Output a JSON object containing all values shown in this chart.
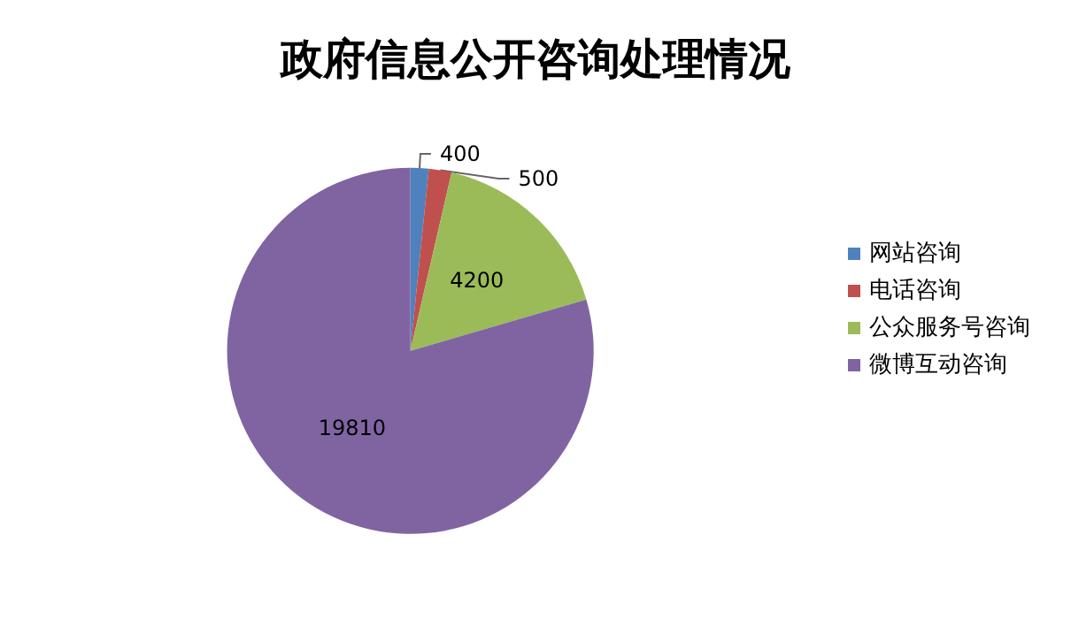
{
  "chart_data": {
    "type": "pie",
    "title": "政府信息公开咨询处理情况",
    "categories": [
      "网站咨询",
      "电话咨询",
      "公众服务号咨询",
      "微博互动咨询"
    ],
    "values": [
      400,
      500,
      4200,
      19810
    ],
    "colors": [
      "#4f81bd",
      "#c0504d",
      "#9bbb59",
      "#8064a2"
    ],
    "data_labels": true,
    "legend": "right"
  }
}
